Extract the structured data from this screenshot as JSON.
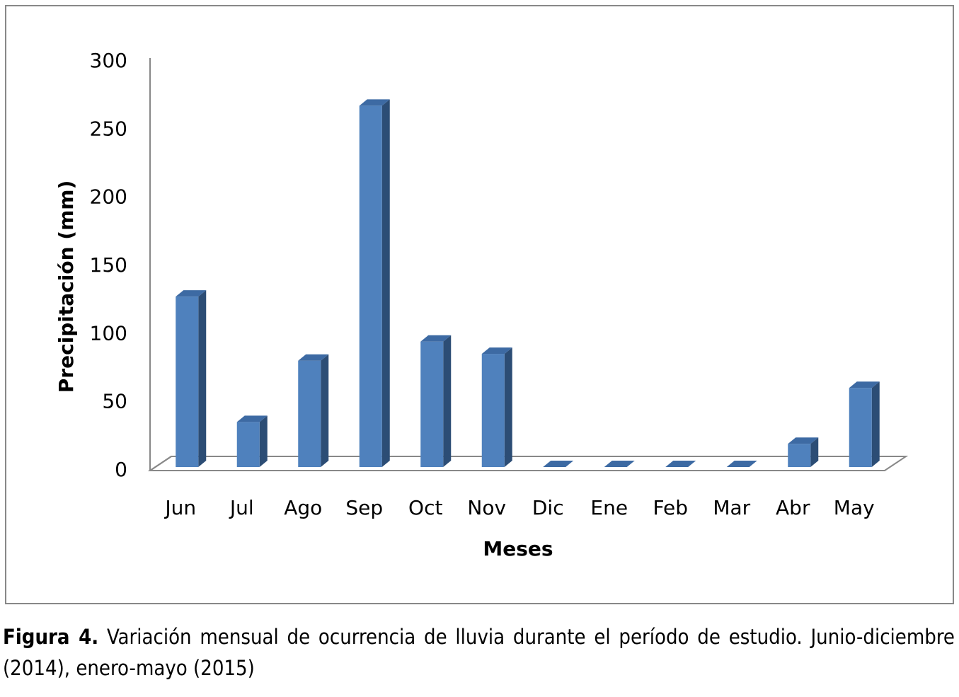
{
  "chart_data": {
    "type": "bar",
    "x_label": "Meses",
    "y_label": "Precipitación (mm)",
    "categories": [
      "Jun",
      "Jul",
      "Ago",
      "Sep",
      "Oct",
      "Nov",
      "Dic",
      "Ene",
      "Feb",
      "Mar",
      "Abr",
      "May"
    ],
    "values": [
      125,
      33,
      78,
      265,
      92,
      83,
      0,
      0,
      0,
      0,
      17,
      58
    ],
    "color": "#4f81bd",
    "ylim": [
      0,
      300
    ],
    "yticks": [
      0,
      50,
      100,
      150,
      200,
      250,
      300
    ],
    "grid": false
  },
  "caption": {
    "label": "Figura 4.",
    "text": "Variación mensual de ocurrencia de lluvia durante el período de estudio. Junio-diciembre (2014), enero-mayo (2015)"
  }
}
